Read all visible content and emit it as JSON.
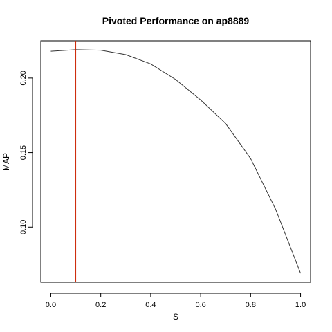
{
  "chart_data": {
    "type": "line",
    "title": "Pivoted Performance on ap8889",
    "xlabel": "S",
    "ylabel": "MAP",
    "x": [
      0.0,
      0.1,
      0.2,
      0.3,
      0.4,
      0.5,
      0.6,
      0.7,
      0.8,
      0.9,
      1.0
    ],
    "series": [
      {
        "values": [
          0.218,
          0.219,
          0.2187,
          0.2157,
          0.2095,
          0.199,
          0.1853,
          0.1695,
          0.146,
          0.112,
          0.069
        ],
        "color": "#333333"
      }
    ],
    "reference_line": {
      "orientation": "vertical",
      "x": 0.1,
      "color": "#cc2200"
    },
    "xlim": [
      -0.04,
      1.04
    ],
    "ylim": [
      0.063,
      0.225
    ],
    "x_ticks": [
      0.0,
      0.2,
      0.4,
      0.6,
      0.8,
      1.0
    ],
    "x_tick_labels": [
      "0.0",
      "0.2",
      "0.4",
      "0.6",
      "0.8",
      "1.0"
    ],
    "y_ticks": [
      0.1,
      0.15,
      0.2
    ],
    "y_tick_labels": [
      "0.10",
      "0.15",
      "0.20"
    ],
    "grid": false,
    "legend": "none"
  }
}
